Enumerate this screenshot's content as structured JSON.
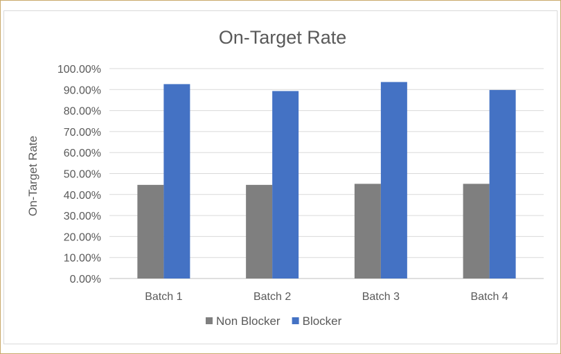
{
  "chart_data": {
    "type": "bar",
    "title": "On-Target Rate",
    "xlabel": "",
    "ylabel": "On-Target Rate",
    "categories": [
      "Batch 1",
      "Batch 2",
      "Batch 3",
      "Batch 4"
    ],
    "series": [
      {
        "name": "Non Blocker",
        "color": "#7f7f7f",
        "values": [
          44.6,
          44.6,
          45.1,
          45.1
        ]
      },
      {
        "name": "Blocker",
        "color": "#4472c4",
        "values": [
          92.6,
          89.3,
          93.6,
          89.8
        ]
      }
    ],
    "ylim": [
      0,
      100
    ],
    "yticks": [
      "0.00%",
      "10.00%",
      "20.00%",
      "30.00%",
      "40.00%",
      "50.00%",
      "60.00%",
      "70.00%",
      "80.00%",
      "90.00%",
      "100.00%"
    ],
    "grid": true,
    "legend": "bottom"
  }
}
